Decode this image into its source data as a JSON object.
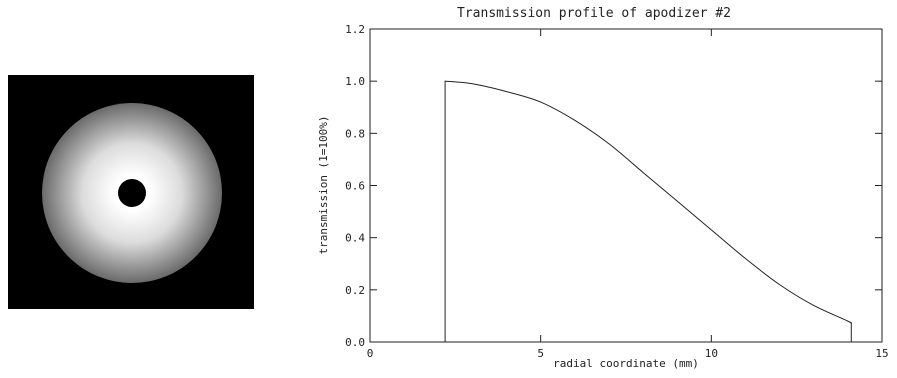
{
  "chart_data": {
    "type": "line",
    "title": "Transmission profile of apodizer #2",
    "xlabel": "radial coordinate (mm)",
    "ylabel": "transmission (1=100%)",
    "xlim": [
      0,
      15
    ],
    "ylim": [
      0.0,
      1.2
    ],
    "x_ticks": [
      0,
      5,
      10,
      15
    ],
    "y_ticks": [
      0.0,
      0.2,
      0.4,
      0.6,
      0.8,
      1.0,
      1.2
    ],
    "x_tick_labels": [
      "0",
      "5",
      "10",
      "15"
    ],
    "y_tick_labels": [
      "0.0",
      "0.2",
      "0.4",
      "0.6",
      "0.8",
      "1.0",
      "1.2"
    ],
    "grid": false,
    "series": [
      {
        "x": [
          2.2,
          2.2,
          3,
          4,
          5,
          6,
          7,
          8,
          9,
          10,
          11,
          12,
          13,
          14,
          14.1,
          14.1
        ],
        "y": [
          0.0,
          1.0,
          0.99,
          0.96,
          0.92,
          0.85,
          0.76,
          0.65,
          0.54,
          0.43,
          0.32,
          0.22,
          0.14,
          0.08,
          0.07,
          0.0
        ]
      }
    ]
  },
  "image": {
    "colors": {
      "background": "#000000",
      "ring_center": "#ffffff",
      "ring_edge": "#6a6a6a",
      "hole": "#000000"
    }
  }
}
